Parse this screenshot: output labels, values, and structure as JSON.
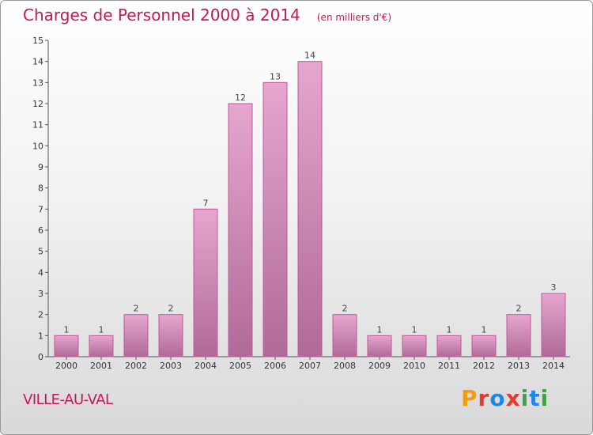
{
  "header": {
    "title": "Charges de Personnel 2000 à 2014",
    "unit": "(en milliers d'€)"
  },
  "footer": {
    "commune": "VILLE-AU-VAL",
    "logo": "Proxiti"
  },
  "colors": {
    "accent": "#c2185b",
    "bar_fill_top": "#e6a6cf",
    "bar_fill_bottom": "#b06a97",
    "bar_stroke": "#c05a95"
  },
  "chart_data": {
    "type": "bar",
    "categories": [
      "2000",
      "2001",
      "2002",
      "2003",
      "2004",
      "2005",
      "2006",
      "2007",
      "2008",
      "2009",
      "2010",
      "2011",
      "2012",
      "2013",
      "2014"
    ],
    "values": [
      1,
      1,
      2,
      2,
      7,
      12,
      13,
      14,
      2,
      1,
      1,
      1,
      1,
      2,
      3
    ],
    "title": "Charges de Personnel 2000 à 2014",
    "subtitle": "(en milliers d'€)",
    "xlabel": "",
    "ylabel": "",
    "ylim": [
      0,
      15
    ],
    "yticks": [
      0,
      1,
      2,
      3,
      4,
      5,
      6,
      7,
      8,
      9,
      10,
      11,
      12,
      13,
      14,
      15
    ],
    "grid": false,
    "data_labels": true
  }
}
